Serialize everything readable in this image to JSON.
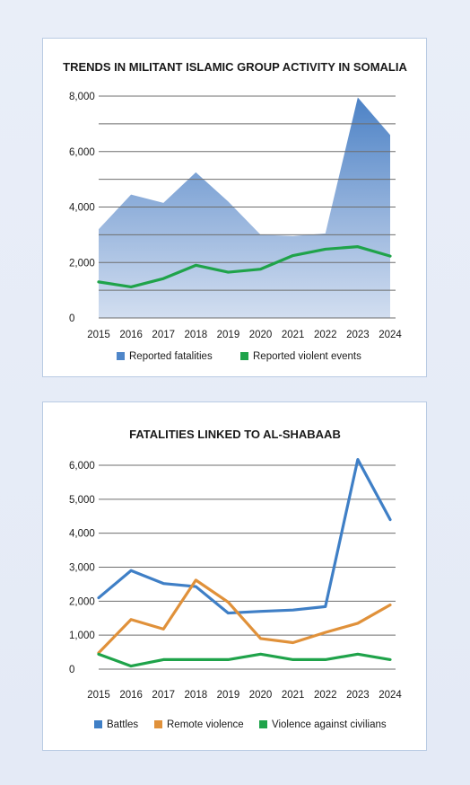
{
  "chart_data": [
    {
      "type": "area",
      "title": "TRENDS IN MILITANT ISLAMIC GROUP ACTIVITY IN SOMALIA",
      "x": [
        "2015",
        "2016",
        "2017",
        "2018",
        "2019",
        "2020",
        "2021",
        "2022",
        "2023",
        "2024"
      ],
      "ylim": [
        0,
        8000
      ],
      "yticks": [
        "0",
        "2,000",
        "4,000",
        "6,000",
        "8,000"
      ],
      "ytick_values": [
        0,
        2000,
        4000,
        6000,
        8000
      ],
      "grid": true,
      "legend_position": "bottom",
      "series": [
        {
          "name": "Reported fatalities",
          "type": "area",
          "color": "#5b8ecb",
          "values": [
            3200,
            4450,
            4150,
            5250,
            4200,
            3000,
            2950,
            3050,
            7950,
            6600
          ]
        },
        {
          "name": "Reported violent events",
          "type": "line",
          "color": "#1fa34a",
          "values": [
            1300,
            1120,
            1420,
            1900,
            1650,
            1760,
            2250,
            2480,
            2570,
            2230
          ]
        }
      ]
    },
    {
      "type": "line",
      "title": "FATALITIES LINKED TO AL-SHABAAB",
      "x": [
        "2015",
        "2016",
        "2017",
        "2018",
        "2019",
        "2020",
        "2021",
        "2022",
        "2023",
        "2024"
      ],
      "ylim": [
        0,
        6000
      ],
      "yticks": [
        "0",
        "1,000",
        "2,000",
        "3,000",
        "4,000",
        "5,000",
        "6,000"
      ],
      "ytick_values": [
        0,
        1000,
        2000,
        3000,
        4000,
        5000,
        6000
      ],
      "grid": true,
      "legend_position": "bottom",
      "series": [
        {
          "name": "Battles",
          "color": "#3f7fc6",
          "values": [
            2100,
            2900,
            2520,
            2430,
            1650,
            1700,
            1740,
            1840,
            6170,
            4400
          ]
        },
        {
          "name": "Remote violence",
          "color": "#e0913a",
          "values": [
            480,
            1460,
            1180,
            2620,
            1970,
            900,
            780,
            1080,
            1350,
            1890
          ]
        },
        {
          "name": "Violence against civilians",
          "color": "#1fa34a",
          "values": [
            440,
            90,
            280,
            280,
            280,
            440,
            280,
            280,
            440,
            280
          ]
        }
      ]
    }
  ]
}
